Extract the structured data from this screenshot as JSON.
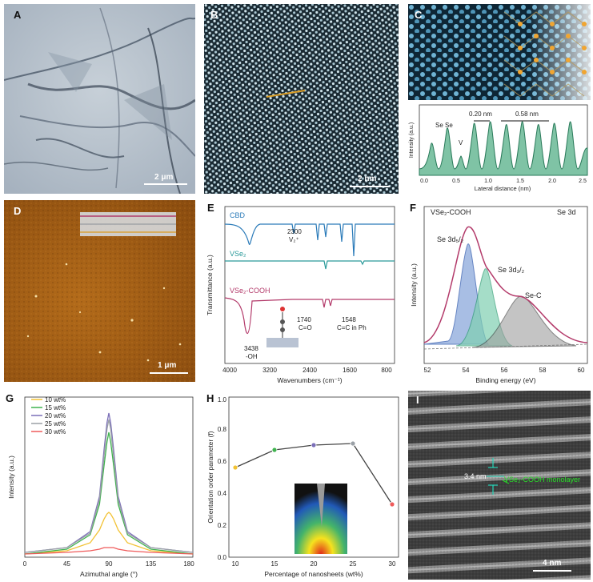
{
  "panels": {
    "A": {
      "label": "A",
      "scale": "2 μm"
    },
    "B": {
      "label": "B",
      "scale": "2 nm"
    },
    "C": {
      "label": "C",
      "inset": {
        "ylabel": "Intensity (a.u.)",
        "xlabel": "Lateral distance (nm)",
        "ann_se": "Se Se",
        "ann_v": "V",
        "ann_1": "0.20 nm",
        "ann_2": "0.58 nm",
        "ticks": [
          "0.0",
          "0.5",
          "1.0",
          "1.5",
          "2.0",
          "2.5"
        ]
      }
    },
    "D": {
      "label": "D",
      "scale": "1 μm"
    },
    "E": {
      "label": "E",
      "ylabel": "Transmittance (a.u.)",
      "xlabel": "Wavenumbers (cm⁻¹)",
      "s1": "CBD",
      "s2": "VSe₂",
      "s3": "VSe₂-COOH",
      "a1": "2300",
      "a1b": "V₂⁺",
      "a2": "1740",
      "a2b": "C=O",
      "a3": "1548",
      "a3b": "C=C in Ph",
      "a4": "3438",
      "a4b": "-OH",
      "ticks": [
        "4000",
        "3200",
        "2400",
        "1600",
        "800"
      ]
    },
    "F": {
      "label": "F",
      "title": "VSe₂-COOH",
      "tag": "Se 3d",
      "p1": "Se 3d₅/₂",
      "p2": "Se 3d₃/₂",
      "p3": "Se-C",
      "ylabel": "Intensity (a.u.)",
      "xlabel": "Binding energy (eV)",
      "ticks": [
        "52",
        "54",
        "56",
        "58",
        "60"
      ]
    },
    "G": {
      "label": "G",
      "ylabel": "Intensity (a.u.)",
      "xlabel": "Azimuthal angle (°)",
      "ticks": [
        "0",
        "45",
        "90",
        "135",
        "180"
      ]
    },
    "H": {
      "label": "H",
      "ylabel": "Orientation order parameter (f)",
      "xlabel": "Percentage of nanosheets (wt%)",
      "xticks": [
        "10",
        "15",
        "20",
        "25",
        "30"
      ],
      "yticks": [
        "0.0",
        "0.2",
        "0.4",
        "0.6",
        "0.8",
        "1.0"
      ]
    },
    "I": {
      "label": "I",
      "d": "3.4 nm",
      "mono": "VSe₂-COOH monolayer",
      "scale": "4 nm"
    }
  },
  "chart_data": [
    {
      "type": "line",
      "panel": "G",
      "xlabel": "Azimuthal angle (°)",
      "ylabel": "Intensity (a.u.)",
      "xlim": [
        0,
        180
      ],
      "x": [
        0,
        45,
        70,
        80,
        85,
        88,
        90,
        92,
        95,
        100,
        110,
        135,
        180
      ],
      "series": [
        {
          "name": "10 wt%",
          "color": "#f2c234",
          "values": [
            0.02,
            0.04,
            0.09,
            0.17,
            0.24,
            0.27,
            0.28,
            0.27,
            0.24,
            0.17,
            0.09,
            0.04,
            0.02
          ]
        },
        {
          "name": "15 wt%",
          "color": "#3fb24e",
          "values": [
            0.02,
            0.05,
            0.14,
            0.33,
            0.58,
            0.72,
            0.78,
            0.72,
            0.58,
            0.33,
            0.14,
            0.05,
            0.02
          ]
        },
        {
          "name": "20 wt%",
          "color": "#7b6fb8",
          "values": [
            0.03,
            0.06,
            0.16,
            0.38,
            0.68,
            0.84,
            0.9,
            0.84,
            0.68,
            0.38,
            0.16,
            0.06,
            0.03
          ]
        },
        {
          "name": "25 wt%",
          "color": "#9aa0a6",
          "values": [
            0.03,
            0.06,
            0.15,
            0.36,
            0.64,
            0.8,
            0.86,
            0.8,
            0.64,
            0.36,
            0.15,
            0.06,
            0.03
          ]
        },
        {
          "name": "30 wt%",
          "color": "#ef5b5b",
          "values": [
            0.02,
            0.03,
            0.04,
            0.05,
            0.06,
            0.06,
            0.06,
            0.06,
            0.06,
            0.05,
            0.04,
            0.03,
            0.02
          ]
        }
      ]
    },
    {
      "type": "line",
      "panel": "H",
      "xlabel": "Percentage of nanosheets (wt%)",
      "ylabel": "Orientation order parameter (f)",
      "ylim": [
        0,
        1.0
      ],
      "x": [
        10,
        15,
        20,
        25,
        30
      ],
      "values": [
        0.56,
        0.67,
        0.7,
        0.71,
        0.33
      ],
      "colors": [
        "#f2c234",
        "#3fb24e",
        "#7b6fb8",
        "#9aa0a6",
        "#ef5b5b"
      ]
    }
  ]
}
